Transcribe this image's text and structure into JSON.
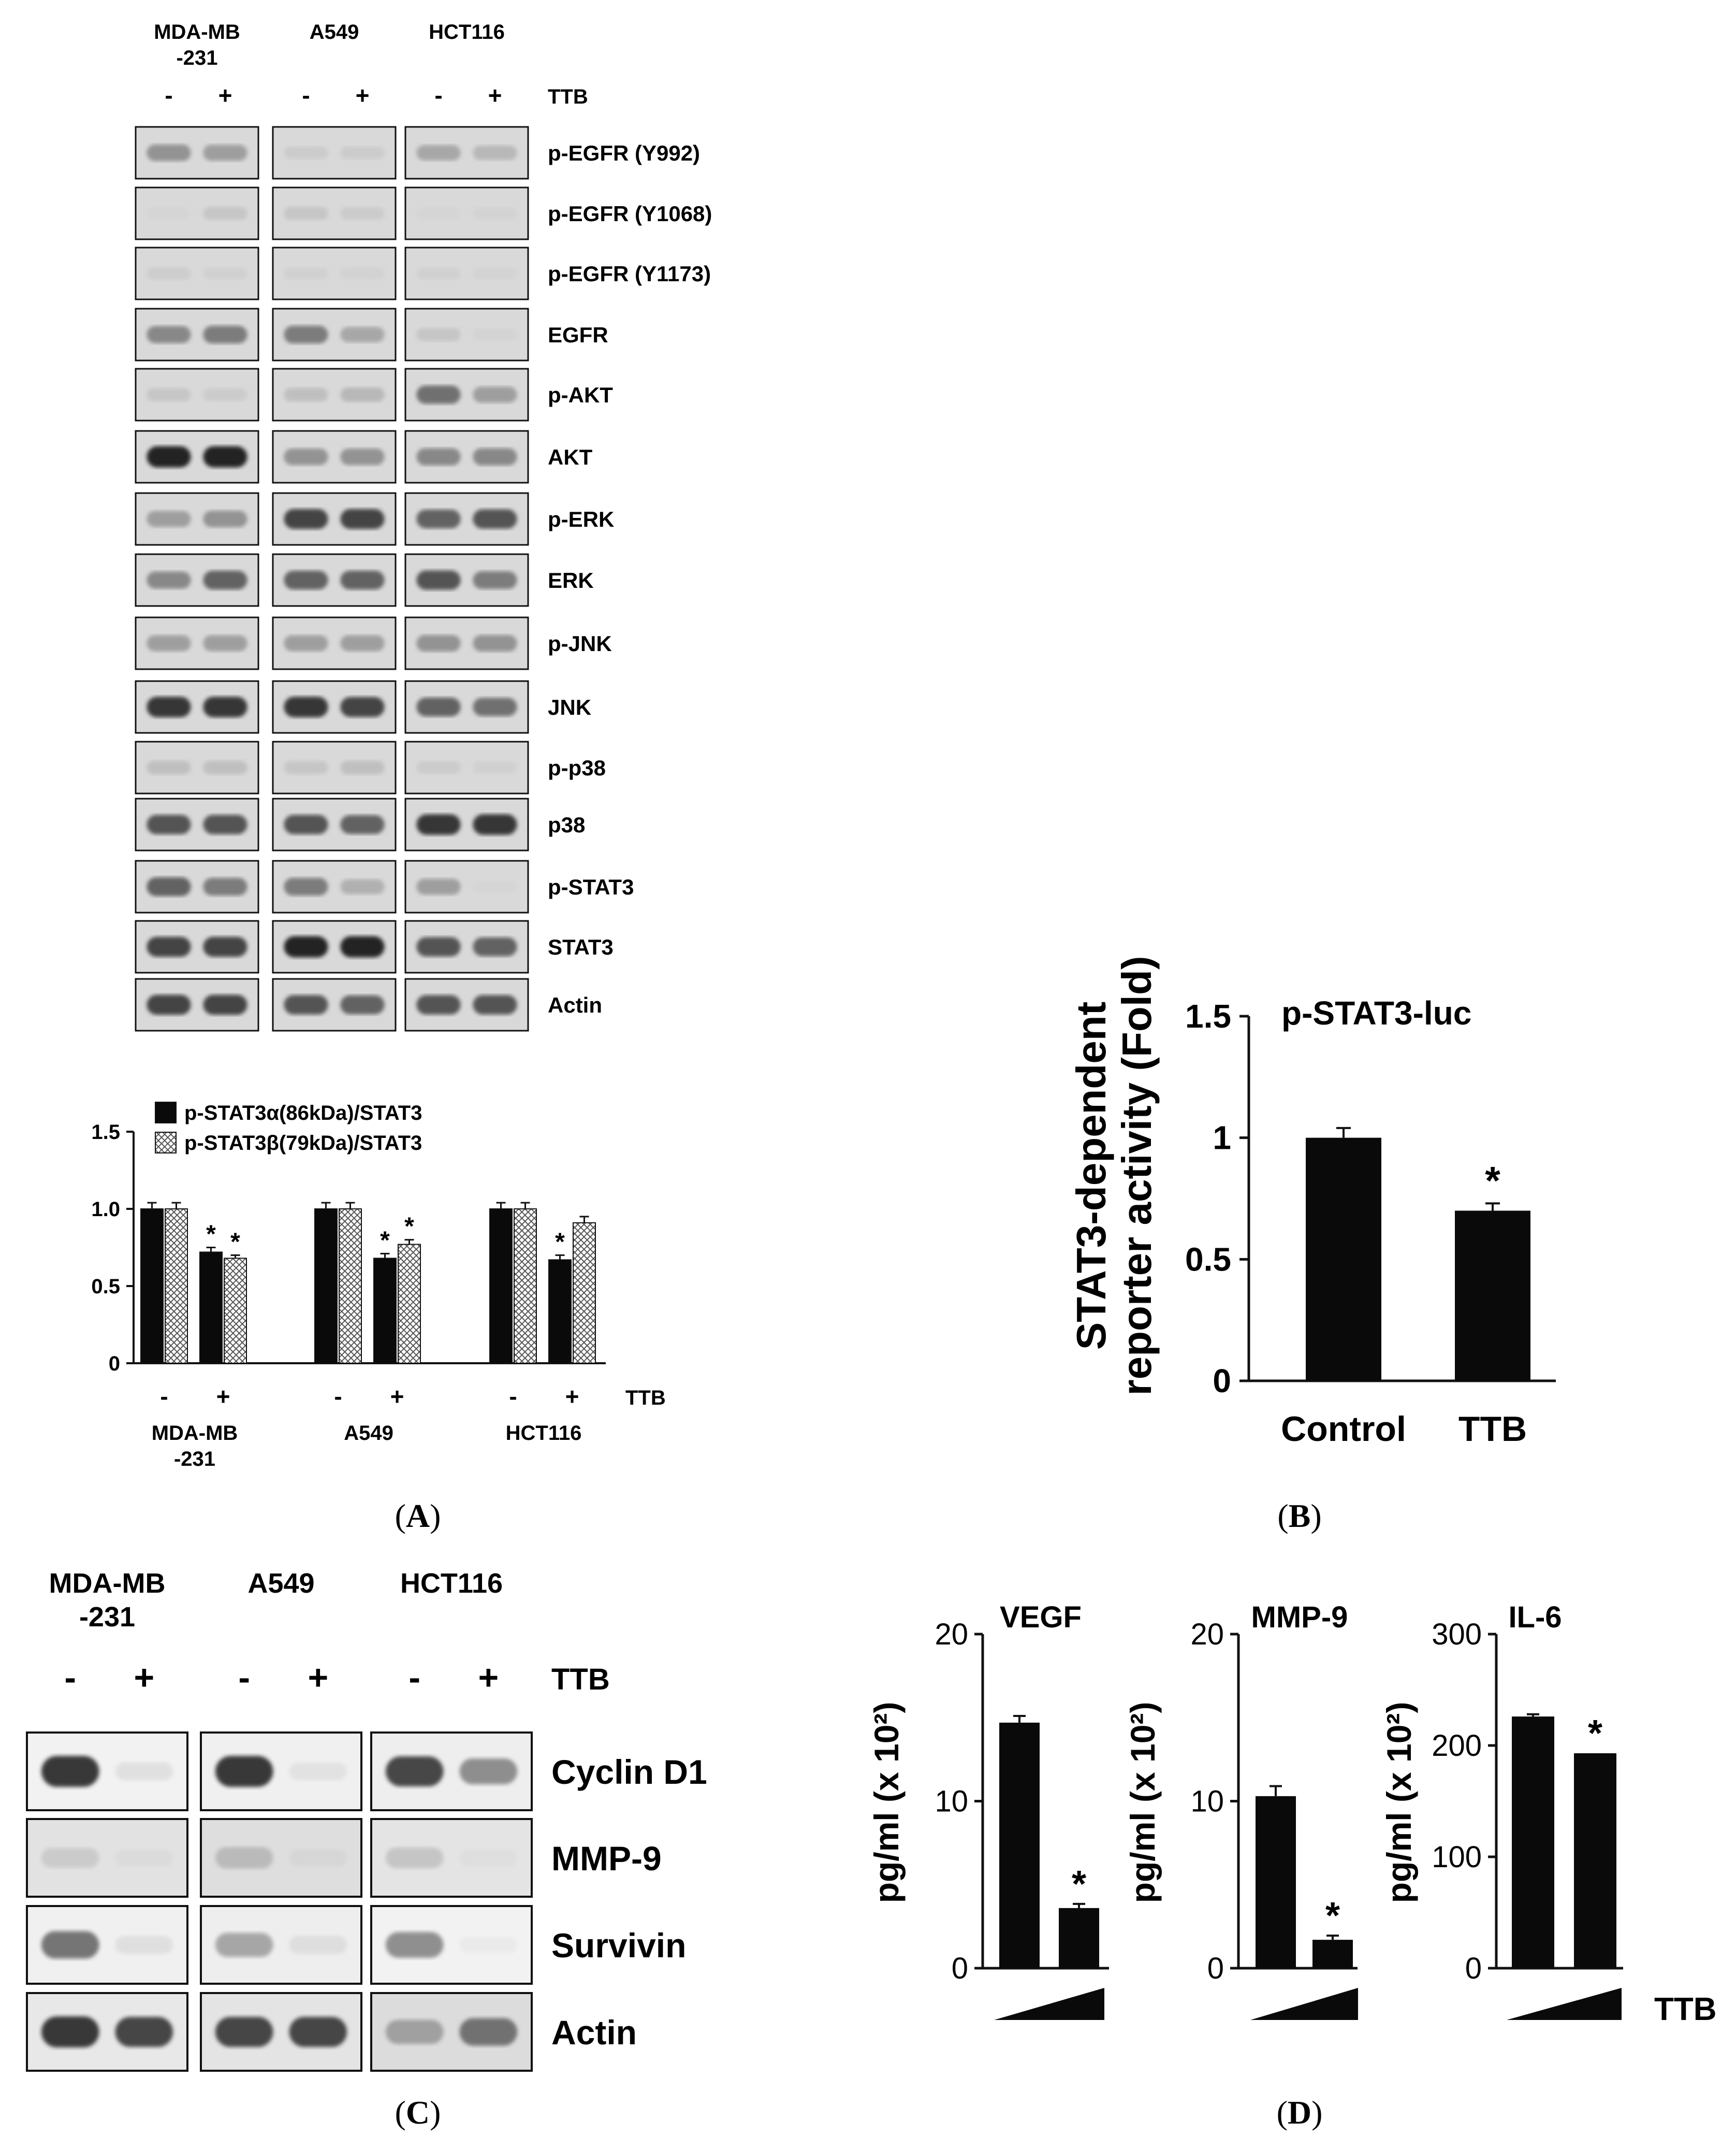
{
  "panel_a": {
    "panel_label": "A",
    "cell_lines": [
      "MDA-MB -231",
      "A549",
      "HCT116"
    ],
    "cell_lines_lines": [
      [
        "MDA-MB",
        "-231"
      ],
      [
        "A549"
      ],
      [
        "HCT116"
      ]
    ],
    "treatment_signs": [
      "-",
      "+"
    ],
    "treatment_label": "TTB",
    "blots": [
      {
        "label": "p-EGFR (Y992)",
        "bands": [
          [
            0.55,
            0.5
          ],
          [
            0.2,
            0.2
          ],
          [
            0.45,
            0.35
          ]
        ]
      },
      {
        "label": "p-EGFR (Y1068)",
        "bands": [
          [
            0.1,
            0.25
          ],
          [
            0.25,
            0.2
          ],
          [
            0.1,
            0.12
          ]
        ]
      },
      {
        "label": "p-EGFR (Y1173)",
        "bands": [
          [
            0.18,
            0.15
          ],
          [
            0.15,
            0.13
          ],
          [
            0.15,
            0.12
          ]
        ]
      },
      {
        "label": "EGFR",
        "bands": [
          [
            0.6,
            0.65
          ],
          [
            0.65,
            0.45
          ],
          [
            0.25,
            0.12
          ]
        ]
      },
      {
        "label": "p-AKT",
        "bands": [
          [
            0.25,
            0.2
          ],
          [
            0.3,
            0.35
          ],
          [
            0.7,
            0.5
          ]
        ]
      },
      {
        "label": "AKT",
        "bands": [
          [
            0.95,
            0.95
          ],
          [
            0.55,
            0.55
          ],
          [
            0.6,
            0.6
          ]
        ]
      },
      {
        "label": "p-ERK",
        "bands": [
          [
            0.5,
            0.55
          ],
          [
            0.85,
            0.85
          ],
          [
            0.75,
            0.8
          ]
        ]
      },
      {
        "label": "ERK",
        "bands": [
          [
            0.6,
            0.75
          ],
          [
            0.75,
            0.75
          ],
          [
            0.8,
            0.65
          ]
        ]
      },
      {
        "label": "p-JNK",
        "bands": [
          [
            0.5,
            0.5
          ],
          [
            0.5,
            0.5
          ],
          [
            0.55,
            0.55
          ]
        ]
      },
      {
        "label": "JNK",
        "bands": [
          [
            0.9,
            0.9
          ],
          [
            0.9,
            0.85
          ],
          [
            0.75,
            0.7
          ]
        ]
      },
      {
        "label": "p-p38",
        "bands": [
          [
            0.3,
            0.3
          ],
          [
            0.25,
            0.3
          ],
          [
            0.2,
            0.15
          ]
        ]
      },
      {
        "label": "p38",
        "bands": [
          [
            0.8,
            0.8
          ],
          [
            0.8,
            0.75
          ],
          [
            0.9,
            0.9
          ]
        ]
      },
      {
        "label": "p-STAT3",
        "bands": [
          [
            0.75,
            0.65
          ],
          [
            0.65,
            0.4
          ],
          [
            0.5,
            0.1
          ]
        ]
      },
      {
        "label": "STAT3",
        "bands": [
          [
            0.85,
            0.85
          ],
          [
            0.95,
            0.95
          ],
          [
            0.8,
            0.75
          ]
        ]
      },
      {
        "label": "Actin",
        "bands": [
          [
            0.85,
            0.85
          ],
          [
            0.8,
            0.75
          ],
          [
            0.8,
            0.8
          ]
        ]
      }
    ]
  },
  "panel_b": {
    "panel_label": "B"
  },
  "panel_c": {
    "panel_label": "C",
    "cell_lines_lines": [
      [
        "MDA-MB",
        "-231"
      ],
      [
        "A549"
      ],
      [
        "HCT116"
      ]
    ],
    "treatment_signs": [
      "-",
      "+"
    ],
    "treatment_label": "TTB",
    "blots": [
      {
        "label": "Cyclin D1",
        "bands": [
          [
            0.9,
            0.15
          ],
          [
            0.9,
            0.12
          ],
          [
            0.85,
            0.6
          ]
        ]
      },
      {
        "label": "MMP-9",
        "bands": [
          [
            0.25,
            0.1
          ],
          [
            0.35,
            0.12
          ],
          [
            0.3,
            0.08
          ]
        ]
      },
      {
        "label": "Survivin",
        "bands": [
          [
            0.7,
            0.15
          ],
          [
            0.5,
            0.15
          ],
          [
            0.6,
            0.05
          ]
        ]
      },
      {
        "label": "Actin",
        "bands": [
          [
            0.9,
            0.85
          ],
          [
            0.85,
            0.85
          ],
          [
            0.5,
            0.7
          ]
        ]
      }
    ]
  },
  "panel_d": {
    "panel_label": "D",
    "treatment_label": "TTB"
  },
  "chart_data": [
    {
      "type": "bar",
      "panel": "A",
      "groups": [
        "MDA-MB -231",
        "A549",
        "HCT116"
      ],
      "group_label_lines": [
        [
          "MDA-MB",
          "-231"
        ],
        [
          "A549"
        ],
        [
          "HCT116"
        ]
      ],
      "treatments": [
        "-",
        "+"
      ],
      "treatment_label": "TTB",
      "series": [
        {
          "name": "p-STAT3α(86kDa)/STAT3",
          "values": [
            [
              1.0,
              0.72
            ],
            [
              1.0,
              0.68
            ],
            [
              1.0,
              0.67
            ]
          ],
          "errors": [
            [
              0.04,
              0.03
            ],
            [
              0.04,
              0.03
            ],
            [
              0.04,
              0.03
            ]
          ],
          "significant": [
            [
              false,
              true
            ],
            [
              false,
              true
            ],
            [
              false,
              true
            ]
          ]
        },
        {
          "name": "p-STAT3β(79kDa)/STAT3",
          "values": [
            [
              1.0,
              0.68
            ],
            [
              1.0,
              0.77
            ],
            [
              1.0,
              0.91
            ]
          ],
          "errors": [
            [
              0.04,
              0.02
            ],
            [
              0.04,
              0.03
            ],
            [
              0.04,
              0.04
            ]
          ],
          "significant": [
            [
              false,
              true
            ],
            [
              false,
              true
            ],
            [
              false,
              false
            ]
          ]
        }
      ],
      "ylim": [
        0,
        1.5
      ],
      "yticks": [
        "0",
        "0.5",
        "1.0",
        "1.5"
      ],
      "significance_mark": "*",
      "legend_position": "top-left"
    },
    {
      "type": "bar",
      "panel": "B",
      "categories": [
        "Control",
        "TTB"
      ],
      "values": [
        1.0,
        0.7
      ],
      "errors": [
        0.04,
        0.03
      ],
      "significant": [
        false,
        true
      ],
      "title": "p-STAT3-luc",
      "ylabel_lines": [
        "STAT3-dependent",
        "reporter activity (Fold)"
      ],
      "ylim": [
        0,
        1.5
      ],
      "yticks": [
        "0",
        "0.5",
        "1",
        "1.5"
      ],
      "significance_mark": "*"
    },
    {
      "type": "bar",
      "panel": "D",
      "title": "VEGF",
      "ylabel": "pg/ml (x 10²)",
      "values": [
        14.7,
        3.6
      ],
      "errors": [
        0.4,
        0.25
      ],
      "significant": [
        false,
        true
      ],
      "ylim": [
        0,
        20
      ],
      "yticks": [
        "0",
        "10",
        "20"
      ],
      "significance_mark": "*"
    },
    {
      "type": "bar",
      "panel": "D",
      "title": "MMP-9",
      "ylabel": "pg/ml (x 10²)",
      "values": [
        10.3,
        1.7
      ],
      "errors": [
        0.6,
        0.25
      ],
      "significant": [
        false,
        true
      ],
      "ylim": [
        0,
        20
      ],
      "yticks": [
        "0",
        "10",
        "20"
      ],
      "significance_mark": "*"
    },
    {
      "type": "bar",
      "panel": "D",
      "title": "IL-6",
      "ylabel": "pg/ml (x 10²)",
      "values": [
        226,
        193
      ],
      "errors": [
        2,
        0
      ],
      "significant": [
        false,
        true
      ],
      "ylim": [
        0,
        300
      ],
      "yticks": [
        "0",
        "100",
        "200",
        "300"
      ],
      "significance_mark": "*",
      "treatment_label": "TTB"
    }
  ]
}
